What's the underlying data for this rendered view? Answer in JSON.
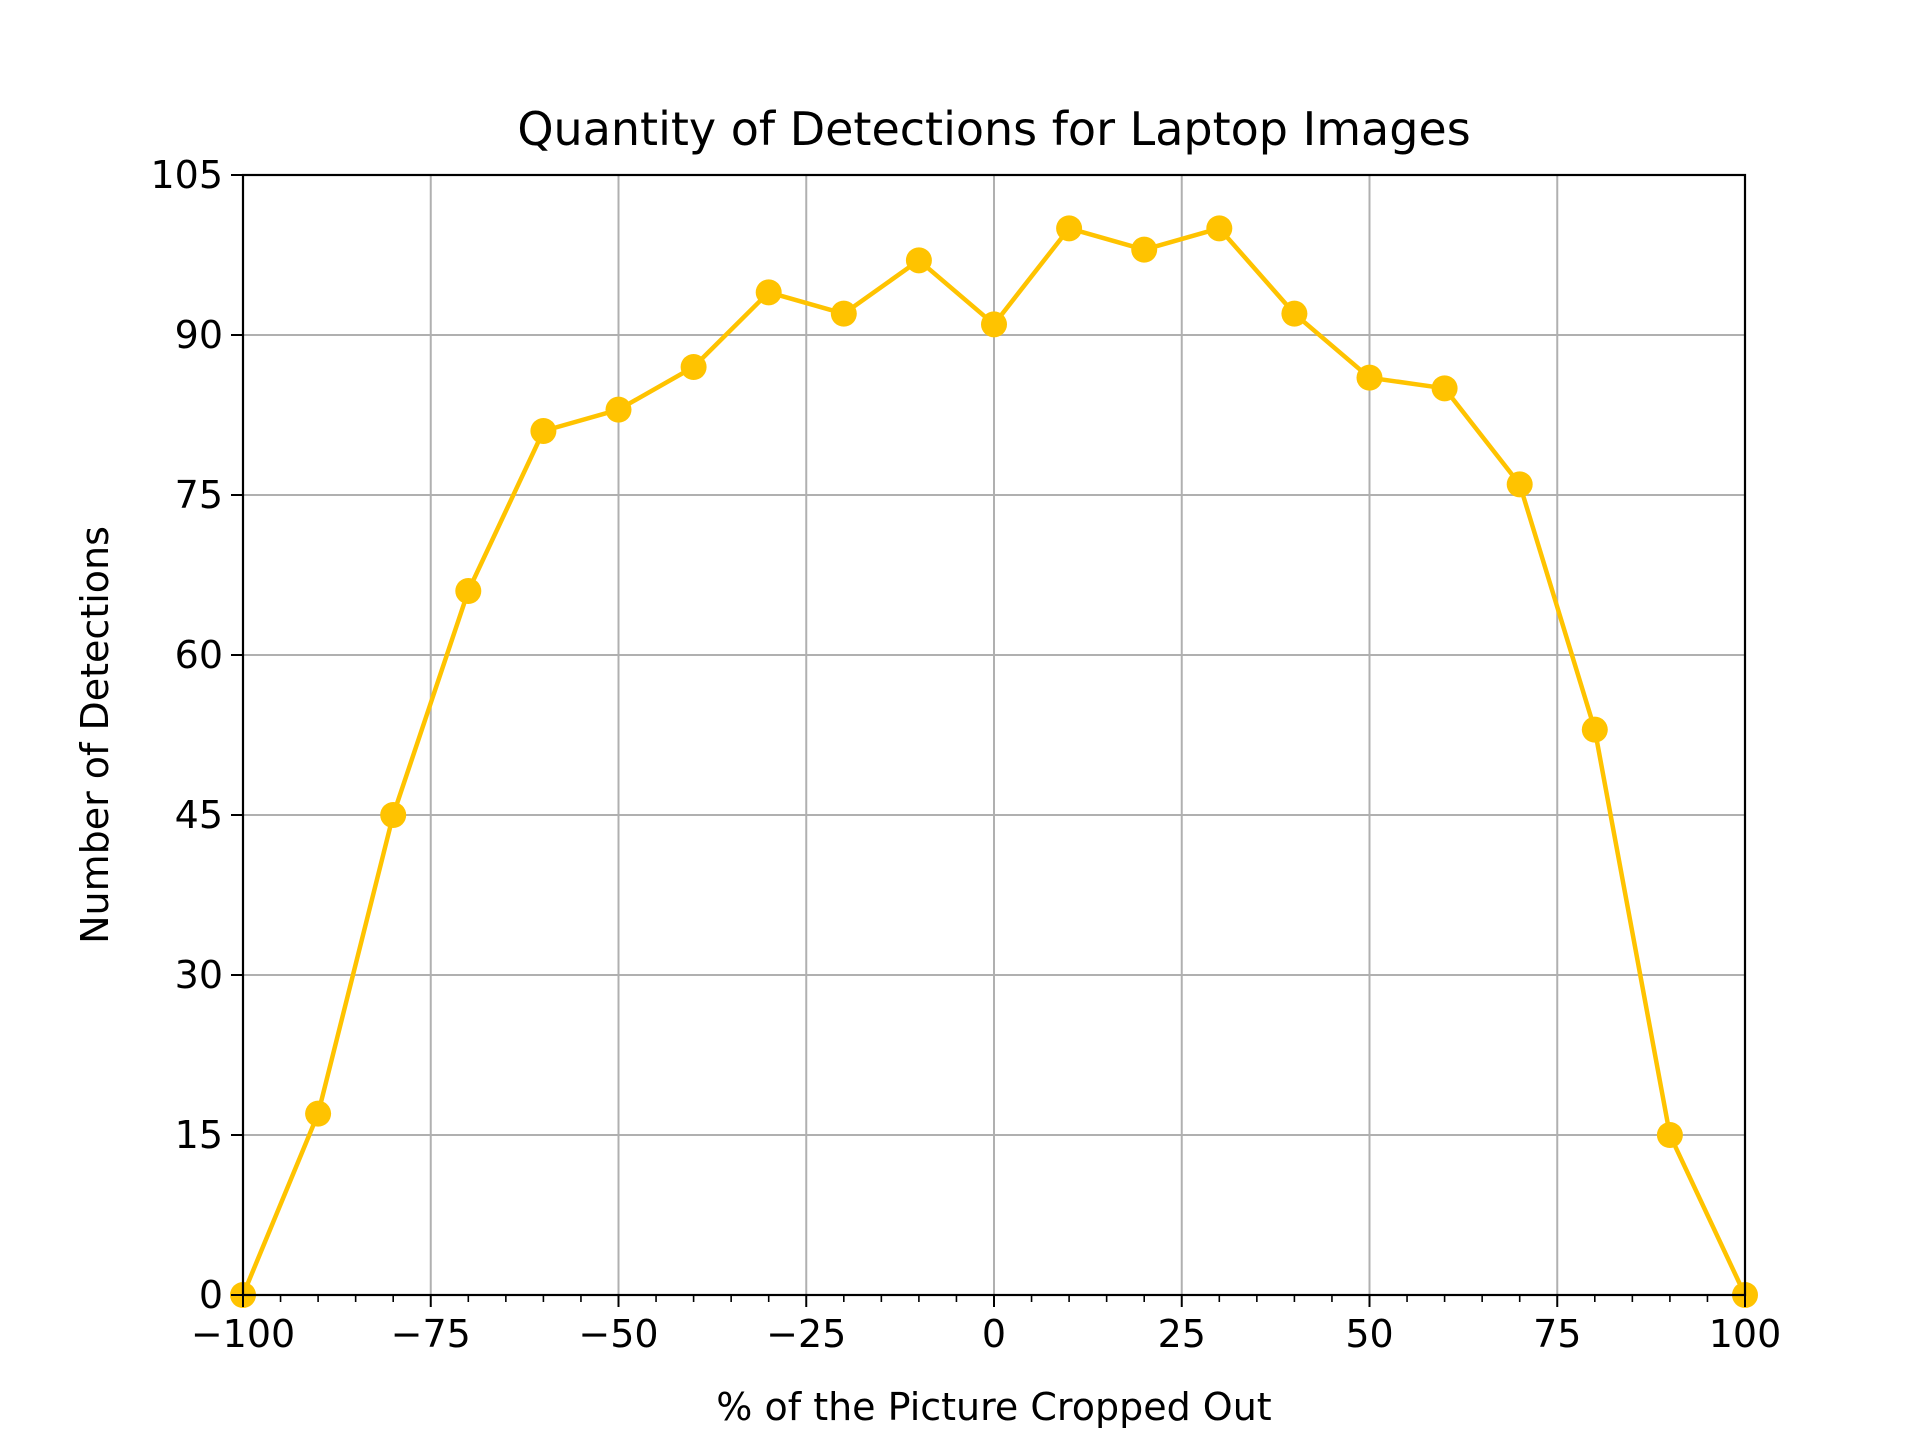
{
  "chart_data": {
    "type": "line",
    "title": "Quantity of Detections for Laptop Images",
    "xlabel": "% of the Picture Cropped Out",
    "ylabel": "Number of Detections",
    "xlim": [
      -100,
      100
    ],
    "ylim": [
      0,
      105
    ],
    "x_ticks": [
      -100,
      -75,
      -50,
      -25,
      0,
      25,
      50,
      75,
      100
    ],
    "x_tick_labels": [
      "−100",
      "−75",
      "−50",
      "−25",
      "0",
      "25",
      "50",
      "75",
      "100"
    ],
    "x_minor_step": 5,
    "y_ticks": [
      0,
      15,
      30,
      45,
      60,
      75,
      90,
      105
    ],
    "y_tick_labels": [
      "0",
      "15",
      "30",
      "45",
      "60",
      "75",
      "90",
      "105"
    ],
    "grid": true,
    "legend": "none",
    "series": [
      {
        "color": "#FFC300",
        "marker": "circle",
        "x": [
          -100,
          -90,
          -80,
          -70,
          -60,
          -50,
          -40,
          -30,
          -20,
          -10,
          0,
          10,
          20,
          30,
          40,
          50,
          60,
          70,
          80,
          90,
          100
        ],
        "y": [
          0,
          17,
          45,
          66,
          81,
          83,
          87,
          94,
          92,
          97,
          91,
          100,
          98,
          100,
          92,
          86,
          85,
          76,
          53,
          15,
          0
        ]
      }
    ]
  }
}
